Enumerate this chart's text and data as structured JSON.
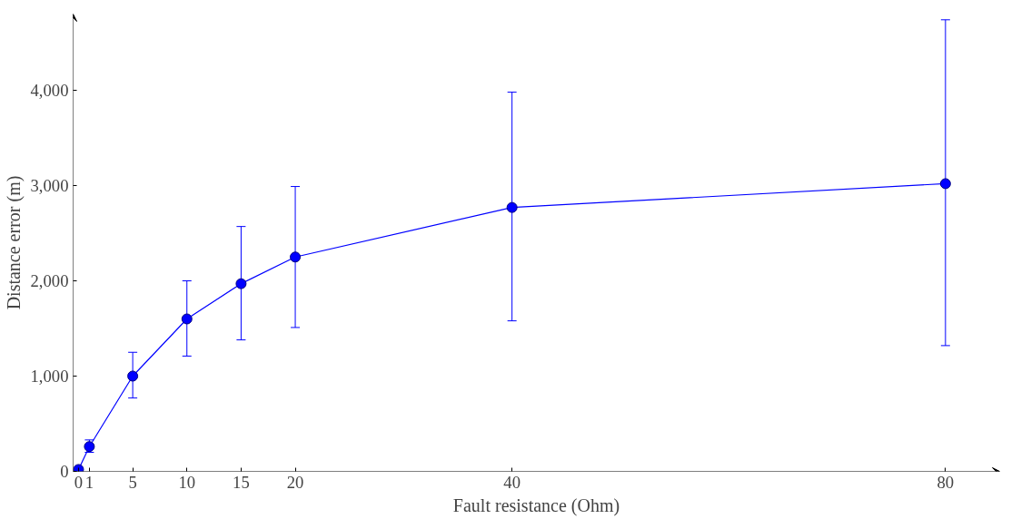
{
  "chart_data": {
    "type": "line",
    "xlabel": "Fault resistance (Ohm)",
    "ylabel": "Distance error (m)",
    "x": [
      0,
      1,
      5,
      10,
      15,
      20,
      40,
      80
    ],
    "series": [
      {
        "color": "#0000ff",
        "values": [
          20,
          260,
          1000,
          1600,
          1970,
          2250,
          2770,
          3020
        ],
        "errors": [
          null,
          [
            200,
            330
          ],
          [
            770,
            1250
          ],
          [
            1210,
            2000
          ],
          [
            1380,
            2570
          ],
          [
            1510,
            2990
          ],
          [
            1580,
            3980
          ],
          [
            1320,
            4740
          ]
        ]
      }
    ],
    "xlim": [
      -0.5,
      85
    ],
    "ylim": [
      0,
      4800
    ],
    "xticks": [
      0,
      1,
      5,
      10,
      15,
      20,
      40,
      80
    ],
    "yticks": [
      {
        "value": 0,
        "label": "0"
      },
      {
        "value": 1000,
        "label": "1,000"
      },
      {
        "value": 2000,
        "label": "2,000"
      },
      {
        "value": 3000,
        "label": "3,000"
      },
      {
        "value": 4000,
        "label": "4,000"
      }
    ],
    "marker": "circle",
    "line_style": "solid",
    "grid": false
  }
}
